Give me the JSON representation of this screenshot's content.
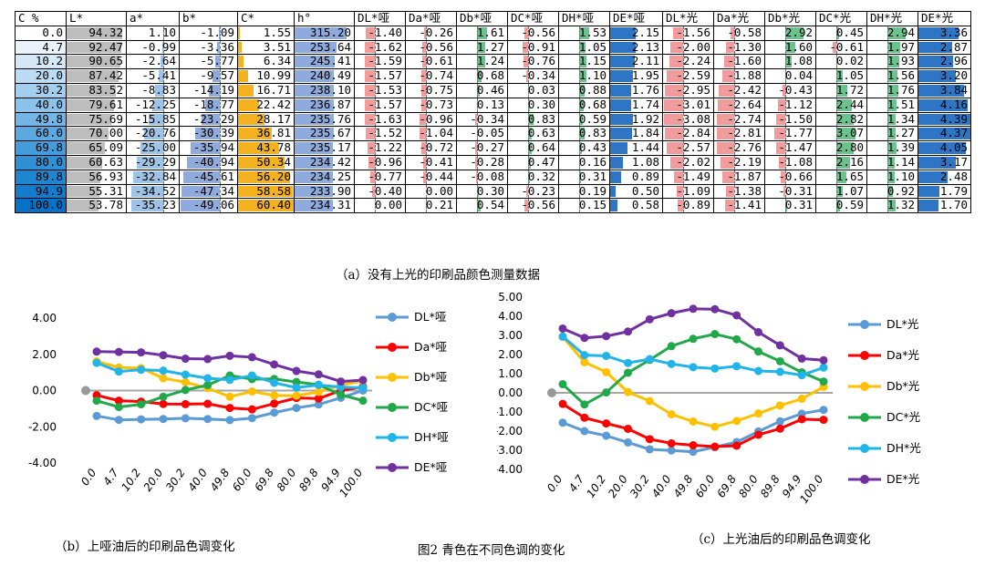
{
  "table": {
    "headers": [
      "C %",
      "L*",
      "a*",
      "b*",
      "C*",
      "h°",
      "DL*哑",
      "Da*哑",
      "Db*哑",
      "DC*哑",
      "DH*哑",
      "DE*哑",
      "DL*光",
      "Da*光",
      "Db*光",
      "DC*光",
      "DH*光",
      "DE*光"
    ],
    "rows": [
      [
        "0.0",
        "94.32",
        "1.10",
        "-1.09",
        "1.55",
        "315.20",
        "-1.40",
        "-0.26",
        "1.61",
        "-0.56",
        "1.53",
        "2.15",
        "-1.56",
        "-0.58",
        "2.92",
        "0.45",
        "2.94",
        "3.36"
      ],
      [
        "4.7",
        "92.47",
        "-0.99",
        "-3.36",
        "3.51",
        "253.64",
        "-1.62",
        "-0.56",
        "1.27",
        "-0.91",
        "1.05",
        "2.13",
        "-2.00",
        "-1.30",
        "1.60",
        "-0.61",
        "1.97",
        "2.87"
      ],
      [
        "10.2",
        "90.65",
        "-2.64",
        "-5.77",
        "6.34",
        "245.41",
        "-1.59",
        "-0.61",
        "1.24",
        "-0.76",
        "1.15",
        "2.11",
        "-2.24",
        "-1.60",
        "1.08",
        "0.02",
        "1.93",
        "2.96"
      ],
      [
        "20.0",
        "87.42",
        "-5.41",
        "-9.57",
        "10.99",
        "240.49",
        "-1.57",
        "-0.74",
        "0.68",
        "-0.34",
        "1.10",
        "1.95",
        "-2.59",
        "-1.88",
        "0.04",
        "1.05",
        "1.56",
        "3.20"
      ],
      [
        "30.2",
        "83.52",
        "-8.83",
        "-14.19",
        "16.71",
        "238.10",
        "-1.53",
        "-0.75",
        "0.46",
        "0.03",
        "0.88",
        "1.76",
        "-2.95",
        "-2.42",
        "-0.43",
        "1.72",
        "1.76",
        "3.84"
      ],
      [
        "40.0",
        "79.61",
        "-12.25",
        "-18.77",
        "22.42",
        "236.87",
        "-1.57",
        "-0.73",
        "0.13",
        "0.30",
        "0.68",
        "1.74",
        "-3.01",
        "-2.64",
        "-1.12",
        "2.44",
        "1.51",
        "4.16"
      ],
      [
        "49.8",
        "75.69",
        "-15.85",
        "-23.29",
        "28.17",
        "235.76",
        "-1.63",
        "-0.96",
        "-0.34",
        "0.83",
        "0.59",
        "1.92",
        "-3.08",
        "-2.74",
        "-1.50",
        "2.82",
        "1.34",
        "4.39"
      ],
      [
        "60.0",
        "70.00",
        "-20.76",
        "-30.39",
        "36.81",
        "235.67",
        "-1.52",
        "-1.04",
        "-0.05",
        "0.63",
        "0.83",
        "1.84",
        "-2.84",
        "-2.81",
        "-1.77",
        "3.07",
        "1.27",
        "4.37"
      ],
      [
        "69.8",
        "65.09",
        "-25.00",
        "-35.94",
        "43.78",
        "235.17",
        "-1.22",
        "-0.72",
        "-0.27",
        "0.64",
        "0.43",
        "1.44",
        "-2.57",
        "-2.76",
        "-1.47",
        "2.80",
        "1.39",
        "4.05"
      ],
      [
        "80.0",
        "60.63",
        "-29.29",
        "-40.94",
        "50.34",
        "234.42",
        "-0.96",
        "-0.41",
        "-0.28",
        "0.47",
        "0.16",
        "1.08",
        "-2.02",
        "-2.19",
        "-1.08",
        "2.16",
        "1.14",
        "3.17"
      ],
      [
        "89.8",
        "56.93",
        "-32.84",
        "-45.61",
        "56.20",
        "234.25",
        "-0.77",
        "-0.44",
        "-0.08",
        "0.32",
        "0.31",
        "0.89",
        "-1.49",
        "-1.87",
        "-0.66",
        "1.65",
        "1.10",
        "2.48"
      ],
      [
        "94.9",
        "55.31",
        "-34.52",
        "-47.34",
        "58.58",
        "233.90",
        "-0.40",
        "0.00",
        "0.30",
        "-0.23",
        "0.19",
        "0.50",
        "-1.09",
        "-1.38",
        "-0.31",
        "1.07",
        "0.92",
        "1.79"
      ],
      [
        "100.0",
        "53.78",
        "-35.23",
        "-49.06",
        "60.40",
        "234.31",
        "0.00",
        "0.21",
        "0.54",
        "-0.56",
        "0.15",
        "0.58",
        "-0.89",
        "-1.41",
        "0.31",
        "0.59",
        "1.32",
        "1.70"
      ]
    ]
  },
  "captions": {
    "table": "（a）没有上光的印刷品颜色测量数据",
    "chart_b": "（b）上哑油后的印刷品色调变化",
    "figure": "图2 青色在不同色调的变化",
    "chart_c": "（c）上光油后的印刷品色调变化"
  },
  "colors": {
    "L": "#bdbdbd",
    "a": "#9dc3e6",
    "b": "#8faadc",
    "C": "#f5b21f",
    "h": "#8faadc",
    "DL": "#f19c9c",
    "Da": "#f19c9c",
    "Db": "#6cc28d",
    "DC": "#f19c9c",
    "DH": "#3fae62",
    "DE": "#2e75c6",
    "row_blue": [
      "#ffffff",
      "#eaf3fb",
      "#d4e8f7",
      "#bcdcf3",
      "#a4cfee",
      "#8cc3ea",
      "#73b6e5",
      "#5ba9e0",
      "#439cdb",
      "#2f90d6",
      "#2186d2",
      "#137ccd",
      "#0572c8"
    ]
  },
  "chart_data": [
    {
      "type": "line",
      "title": "",
      "categories": [
        "0.0",
        "4.7",
        "10.2",
        "20.0",
        "30.2",
        "40.0",
        "49.8",
        "60.0",
        "69.8",
        "80.0",
        "89.8",
        "94.9",
        "100.0"
      ],
      "ylim": [
        -4,
        4
      ],
      "yticks": [
        "4.00",
        "2.00",
        "0.00",
        "-2.00",
        "-4.00"
      ],
      "series": [
        {
          "name": "DL*哑",
          "color": "#5b9bd5",
          "values": [
            -1.4,
            -1.62,
            -1.59,
            -1.57,
            -1.53,
            -1.57,
            -1.63,
            -1.52,
            -1.22,
            -0.96,
            -0.77,
            -0.4,
            0.0
          ]
        },
        {
          "name": "Da*哑",
          "color": "#ff0000",
          "values": [
            -0.26,
            -0.56,
            -0.61,
            -0.74,
            -0.75,
            -0.73,
            -0.96,
            -1.04,
            -0.72,
            -0.41,
            -0.44,
            0.0,
            0.21
          ]
        },
        {
          "name": "Db*哑",
          "color": "#ffc000",
          "values": [
            1.61,
            1.27,
            1.24,
            0.68,
            0.46,
            0.13,
            -0.34,
            -0.05,
            -0.27,
            -0.28,
            -0.08,
            0.3,
            0.54
          ]
        },
        {
          "name": "DC*哑",
          "color": "#22a84a",
          "values": [
            -0.56,
            -0.91,
            -0.76,
            -0.34,
            0.03,
            0.3,
            0.83,
            0.63,
            0.64,
            0.47,
            0.32,
            -0.23,
            -0.56
          ]
        },
        {
          "name": "DH*哑",
          "color": "#21b4e8",
          "values": [
            1.53,
            1.05,
            1.15,
            1.1,
            0.88,
            0.68,
            0.59,
            0.83,
            0.43,
            0.16,
            0.31,
            0.19,
            0.15
          ]
        },
        {
          "name": "DE*哑",
          "color": "#7030a0",
          "values": [
            2.15,
            2.13,
            2.11,
            1.95,
            1.76,
            1.74,
            1.92,
            1.84,
            1.44,
            1.08,
            0.89,
            0.5,
            0.58
          ]
        }
      ]
    },
    {
      "type": "line",
      "title": "",
      "categories": [
        "0.0",
        "4.7",
        "10.2",
        "20.0",
        "30.2",
        "40.0",
        "49.8",
        "60.0",
        "69.8",
        "80.0",
        "89.8",
        "94.9",
        "100.0"
      ],
      "ylim": [
        -4,
        5
      ],
      "yticks": [
        "5.00",
        "4.00",
        "3.00",
        "2.00",
        "1.00",
        "0.00",
        "-1.00",
        "-2.00",
        "-3.00",
        "-4.00"
      ],
      "series": [
        {
          "name": "DL*光",
          "color": "#5b9bd5",
          "values": [
            -1.56,
            -2.0,
            -2.24,
            -2.59,
            -2.95,
            -3.01,
            -3.08,
            -2.84,
            -2.57,
            -2.02,
            -1.49,
            -1.09,
            -0.89
          ]
        },
        {
          "name": "Da*光",
          "color": "#ff0000",
          "values": [
            -0.58,
            -1.3,
            -1.6,
            -1.88,
            -2.42,
            -2.64,
            -2.74,
            -2.81,
            -2.76,
            -2.19,
            -1.87,
            -1.38,
            -1.41
          ]
        },
        {
          "name": "Db*光",
          "color": "#ffc000",
          "values": [
            2.92,
            1.6,
            1.08,
            0.04,
            -0.43,
            -1.12,
            -1.5,
            -1.77,
            -1.47,
            -1.08,
            -0.66,
            -0.31,
            0.31
          ]
        },
        {
          "name": "DC*光",
          "color": "#22a84a",
          "values": [
            0.45,
            -0.61,
            0.02,
            1.05,
            1.72,
            2.44,
            2.82,
            3.07,
            2.8,
            2.16,
            1.65,
            1.07,
            0.59
          ]
        },
        {
          "name": "DH*光",
          "color": "#21b4e8",
          "values": [
            2.94,
            1.97,
            1.93,
            1.56,
            1.76,
            1.51,
            1.34,
            1.27,
            1.39,
            1.14,
            1.1,
            0.92,
            1.32
          ]
        },
        {
          "name": "DE*光",
          "color": "#7030a0",
          "values": [
            3.36,
            2.87,
            2.96,
            3.2,
            3.84,
            4.16,
            4.39,
            4.37,
            4.05,
            3.17,
            2.48,
            1.79,
            1.7
          ]
        }
      ]
    }
  ]
}
